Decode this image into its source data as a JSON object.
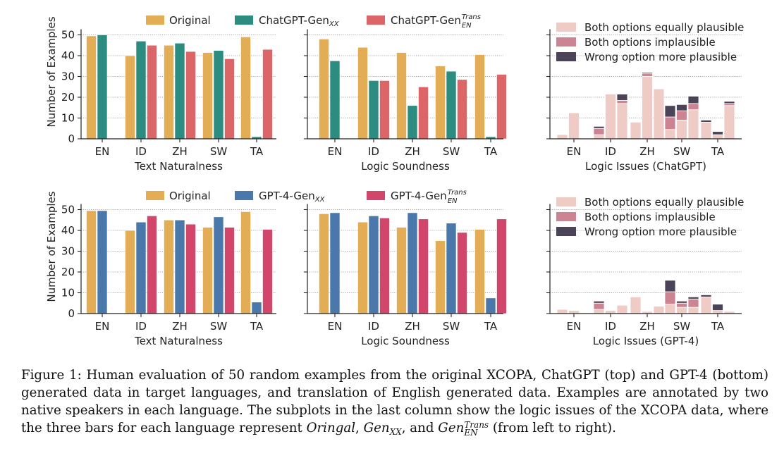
{
  "figure": {
    "ylabel": "Number of Examples",
    "yticks": [
      0,
      10,
      20,
      30,
      40,
      50
    ],
    "languages": [
      "EN",
      "ID",
      "ZH",
      "SW",
      "TA"
    ],
    "colors": {
      "original": "#e3ad55",
      "chatgpt_xx": "#2d8c80",
      "chatgpt_trans": "#dc6568",
      "gpt4_xx": "#4a78ab",
      "gpt4_trans": "#d1466a",
      "equally": "#efcbc6",
      "implausible": "#cc8493",
      "wrong": "#4b4358"
    }
  },
  "legends": {
    "top": {
      "original": "Original",
      "xx_base": "ChatGPT-Gen",
      "xx_sub": "XX",
      "trans_base": "ChatGPT-Gen",
      "trans_sup": "Trans",
      "trans_sub": "EN"
    },
    "bottom": {
      "original": "Original",
      "xx_base": "GPT-4-Gen",
      "xx_sub": "XX",
      "trans_base": "GPT-4-Gen",
      "trans_sup": "Trans",
      "trans_sub": "EN"
    },
    "issues": {
      "equally": "Both options equally plausible",
      "implausible": "Both options implausible",
      "wrong": "Wrong option more plausible"
    }
  },
  "chart_data": [
    {
      "type": "bar",
      "xlabel": "Text Naturalness",
      "ylim": [
        0,
        52
      ],
      "categories": [
        "EN",
        "ID",
        "ZH",
        "SW",
        "TA"
      ],
      "series": [
        {
          "name": "Original",
          "values": [
            49.5,
            40,
            45,
            41.5,
            49
          ]
        },
        {
          "name": "ChatGPT-Gen_XX",
          "values": [
            50,
            47,
            46,
            42.5,
            1
          ]
        },
        {
          "name": "ChatGPT-Gen_EN^Trans",
          "values": [
            0,
            45,
            42,
            38.5,
            43
          ]
        }
      ]
    },
    {
      "type": "bar",
      "xlabel": "Logic Soundness",
      "ylim": [
        0,
        52
      ],
      "categories": [
        "EN",
        "ID",
        "ZH",
        "SW",
        "TA"
      ],
      "series": [
        {
          "name": "Original",
          "values": [
            48,
            44,
            41.5,
            35,
            40.5
          ]
        },
        {
          "name": "ChatGPT-Gen_XX",
          "values": [
            37.5,
            28,
            16,
            32.5,
            1
          ]
        },
        {
          "name": "ChatGPT-Gen_EN^Trans",
          "values": [
            0,
            28,
            25,
            28.5,
            31
          ]
        }
      ]
    },
    {
      "type": "bar",
      "stacked": true,
      "xlabel": "Logic Issues (ChatGPT)",
      "ylim": [
        0,
        52
      ],
      "categories": [
        "EN",
        "ID",
        "ZH",
        "SW",
        "TA"
      ],
      "groups": [
        "Original",
        "ChatGPT-Gen_XX",
        "ChatGPT-Gen_EN^Trans"
      ],
      "series": [
        {
          "name": "Both options equally plausible",
          "values": [
            [
              2,
              12.5,
              0
            ],
            [
              2,
              21.5,
              17
            ],
            [
              8,
              30,
              24
            ],
            [
              4.5,
              9,
              14
            ],
            [
              8,
              2,
              16
            ]
          ]
        },
        {
          "name": "Both options implausible",
          "values": [
            [
              0,
              0,
              0
            ],
            [
              3,
              0,
              1.5
            ],
            [
              0,
              1.5,
              0
            ],
            [
              6,
              4.5,
              3
            ],
            [
              0,
              0,
              1
            ]
          ]
        },
        {
          "name": "Wrong option more plausible",
          "values": [
            [
              0,
              0,
              0
            ],
            [
              1,
              0,
              3
            ],
            [
              0,
              0.5,
              0
            ],
            [
              5.5,
              3,
              3.5
            ],
            [
              1,
              1.5,
              1
            ]
          ]
        }
      ]
    },
    {
      "type": "bar",
      "xlabel": "Text Naturalness",
      "ylim": [
        0,
        52
      ],
      "categories": [
        "EN",
        "ID",
        "ZH",
        "SW",
        "TA"
      ],
      "series": [
        {
          "name": "Original",
          "values": [
            49.5,
            40,
            45,
            41.5,
            49
          ]
        },
        {
          "name": "GPT-4-Gen_XX",
          "values": [
            49.5,
            44,
            45,
            46.5,
            5.5
          ]
        },
        {
          "name": "GPT-4-Gen_EN^Trans",
          "values": [
            0,
            47,
            43,
            41.5,
            40.5
          ]
        }
      ]
    },
    {
      "type": "bar",
      "xlabel": "Logic Soundness",
      "ylim": [
        0,
        52
      ],
      "categories": [
        "EN",
        "ID",
        "ZH",
        "SW",
        "TA"
      ],
      "series": [
        {
          "name": "Original",
          "values": [
            48,
            44,
            41.5,
            35,
            40.5
          ]
        },
        {
          "name": "GPT-4-Gen_XX",
          "values": [
            48.5,
            47,
            48.5,
            43.5,
            7.5
          ]
        },
        {
          "name": "GPT-4-Gen_EN^Trans",
          "values": [
            0,
            46,
            45.5,
            39,
            45.5
          ]
        }
      ]
    },
    {
      "type": "bar",
      "stacked": true,
      "xlabel": "Logic Issues (GPT-4)",
      "ylim": [
        0,
        52
      ],
      "categories": [
        "EN",
        "ID",
        "ZH",
        "SW",
        "TA"
      ],
      "groups": [
        "Original",
        "GPT-4-Gen_XX",
        "GPT-4-Gen_EN^Trans"
      ],
      "series": [
        {
          "name": "Both options equally plausible",
          "values": [
            [
              2,
              1.5,
              0
            ],
            [
              2,
              1.5,
              4
            ],
            [
              8,
              1,
              3.5
            ],
            [
              4.5,
              3,
              3
            ],
            [
              8,
              1.5,
              1
            ]
          ]
        },
        {
          "name": "Both options implausible",
          "values": [
            [
              0,
              0,
              0
            ],
            [
              3,
              0,
              0
            ],
            [
              0,
              0,
              0
            ],
            [
              6,
              2,
              4
            ],
            [
              0,
              0,
              0
            ]
          ]
        },
        {
          "name": "Wrong option more plausible",
          "values": [
            [
              0,
              0,
              0
            ],
            [
              1,
              0,
              0
            ],
            [
              0,
              0,
              0
            ],
            [
              5.5,
              1,
              1
            ],
            [
              1,
              3,
              0
            ]
          ]
        }
      ]
    }
  ],
  "caption": {
    "lead": "Figure 1: Human evaluation of 50 random examples from the original XCOPA, ChatGPT (top) and GPT-4 (bottom) generated data in target languages, and translation of English generated data. Examples are annotated by two native speakers in each language. The subplots in the last column show the logic issues of the XCOPA data, where the three bars for each language represent",
    "oringal": "Oringal",
    "comma": ",",
    "gen_base": "Gen",
    "gen_xx_sub": "XX",
    "and": ", and",
    "gen_sup": "Trans",
    "gen_en_sub": "EN",
    "tail": "(from left to right)."
  }
}
